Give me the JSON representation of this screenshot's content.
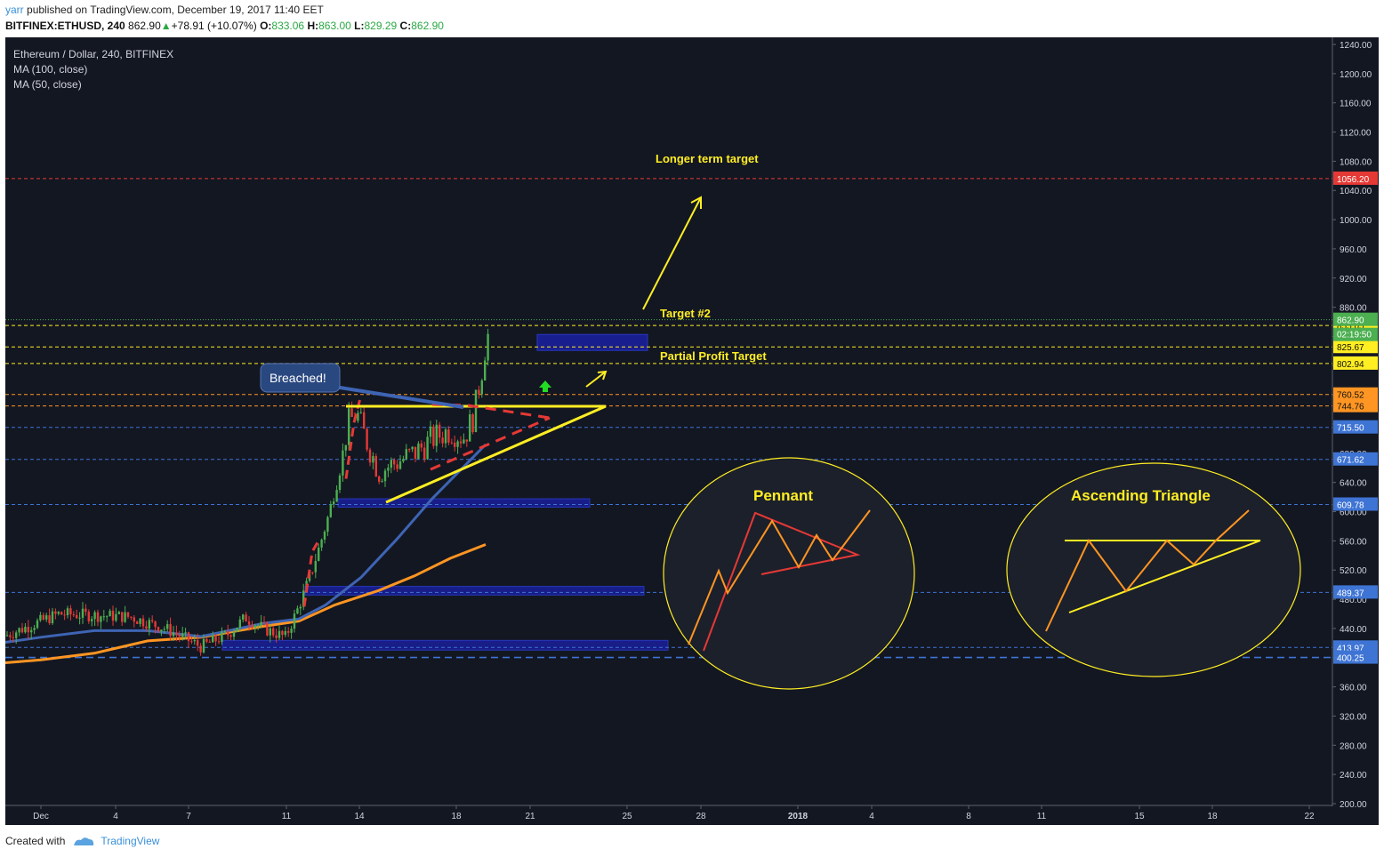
{
  "header": {
    "user": "yarr",
    "published": "published on TradingView.com, December 19, 2017 11:40 EET",
    "symbol": "BITFINEX:ETHUSD, 240",
    "price": "862.90",
    "change": "+78.91 (+10.07%)",
    "o_label": "O:",
    "o": "833.06",
    "h_label": "H:",
    "h": "863.00",
    "l_label": "L:",
    "l": "829.29",
    "c_label": "C:",
    "c": "862.90",
    "up_arrow": "▲"
  },
  "legend": {
    "title": "Ethereum / Dollar, 240, BITFINEX",
    "ma100": "MA (100, close)",
    "ma50": "MA (50, close)"
  },
  "footer": {
    "created_with": "Created with",
    "brand": "TradingView"
  },
  "colors": {
    "background": "#131722",
    "ma100": "#ff9522",
    "ma50": "#3e64b4",
    "up": "#4caf50",
    "down": "#e53935",
    "yellow": "#ffee22",
    "red_line": "#e53935"
  },
  "chart_data": {
    "type": "candlestick",
    "symbol": "ETHUSD",
    "interval": "240",
    "x_tick_labels": [
      "Dec",
      "4",
      "7",
      "11",
      "14",
      "18",
      "21",
      "25",
      "28",
      "2018",
      "4",
      "8",
      "11",
      "15",
      "18",
      "22"
    ],
    "y_ticks": [
      "1240.00",
      "1200.00",
      "1160.00",
      "1120.00",
      "1080.00",
      "1040.00",
      "1000.00",
      "960.00",
      "920.00",
      "880.00",
      "840.00",
      "800.00",
      "760.00",
      "720.00",
      "680.00",
      "640.00",
      "600.00",
      "560.00",
      "520.00",
      "480.00",
      "440.00",
      "400.00",
      "360.00",
      "320.00",
      "280.00",
      "240.00",
      "200.00"
    ],
    "ylim": [
      200,
      1240
    ],
    "last_price": "862.90",
    "countdown": "02:19:50",
    "price_levels": [
      {
        "value": 1056.2,
        "label": "1056.20",
        "color": "#e53935",
        "style": "dashed"
      },
      {
        "value": 855.05,
        "label": "855.05",
        "color": "#ffee22",
        "style": "dashed"
      },
      {
        "value": 825.67,
        "label": "825.67",
        "color": "#ffee22",
        "style": "dashed"
      },
      {
        "value": 802.94,
        "label": "802.94",
        "color": "#ffee22",
        "style": "dashed"
      },
      {
        "value": 760.52,
        "label": "760.52",
        "color": "#ff9522",
        "style": "dashed"
      },
      {
        "value": 744.76,
        "label": "744.76",
        "color": "#ff9522",
        "style": "dashed"
      },
      {
        "value": 715.5,
        "label": "715.50",
        "color": "#3e74d4",
        "style": "dashed"
      },
      {
        "value": 671.62,
        "label": "671.62",
        "color": "#3e74d4",
        "style": "dashed"
      },
      {
        "value": 609.78,
        "label": "609.78",
        "color": "#3e74d4",
        "style": "dashed"
      },
      {
        "value": 489.37,
        "label": "489.37",
        "color": "#3e74d4",
        "style": "dashed"
      },
      {
        "value": 413.97,
        "label": "413.97",
        "color": "#3e74d4",
        "style": "dashed"
      },
      {
        "value": 400.25,
        "label": "400.25",
        "color": "#3e74d4",
        "style": "dashed"
      }
    ],
    "annotations": {
      "longer_term": "Longer term target",
      "target2": "Target #2",
      "partial": "Partial Profit Target",
      "breached": "Breached!",
      "pennant": "Pennant",
      "ascending": "Ascending Triangle"
    }
  }
}
